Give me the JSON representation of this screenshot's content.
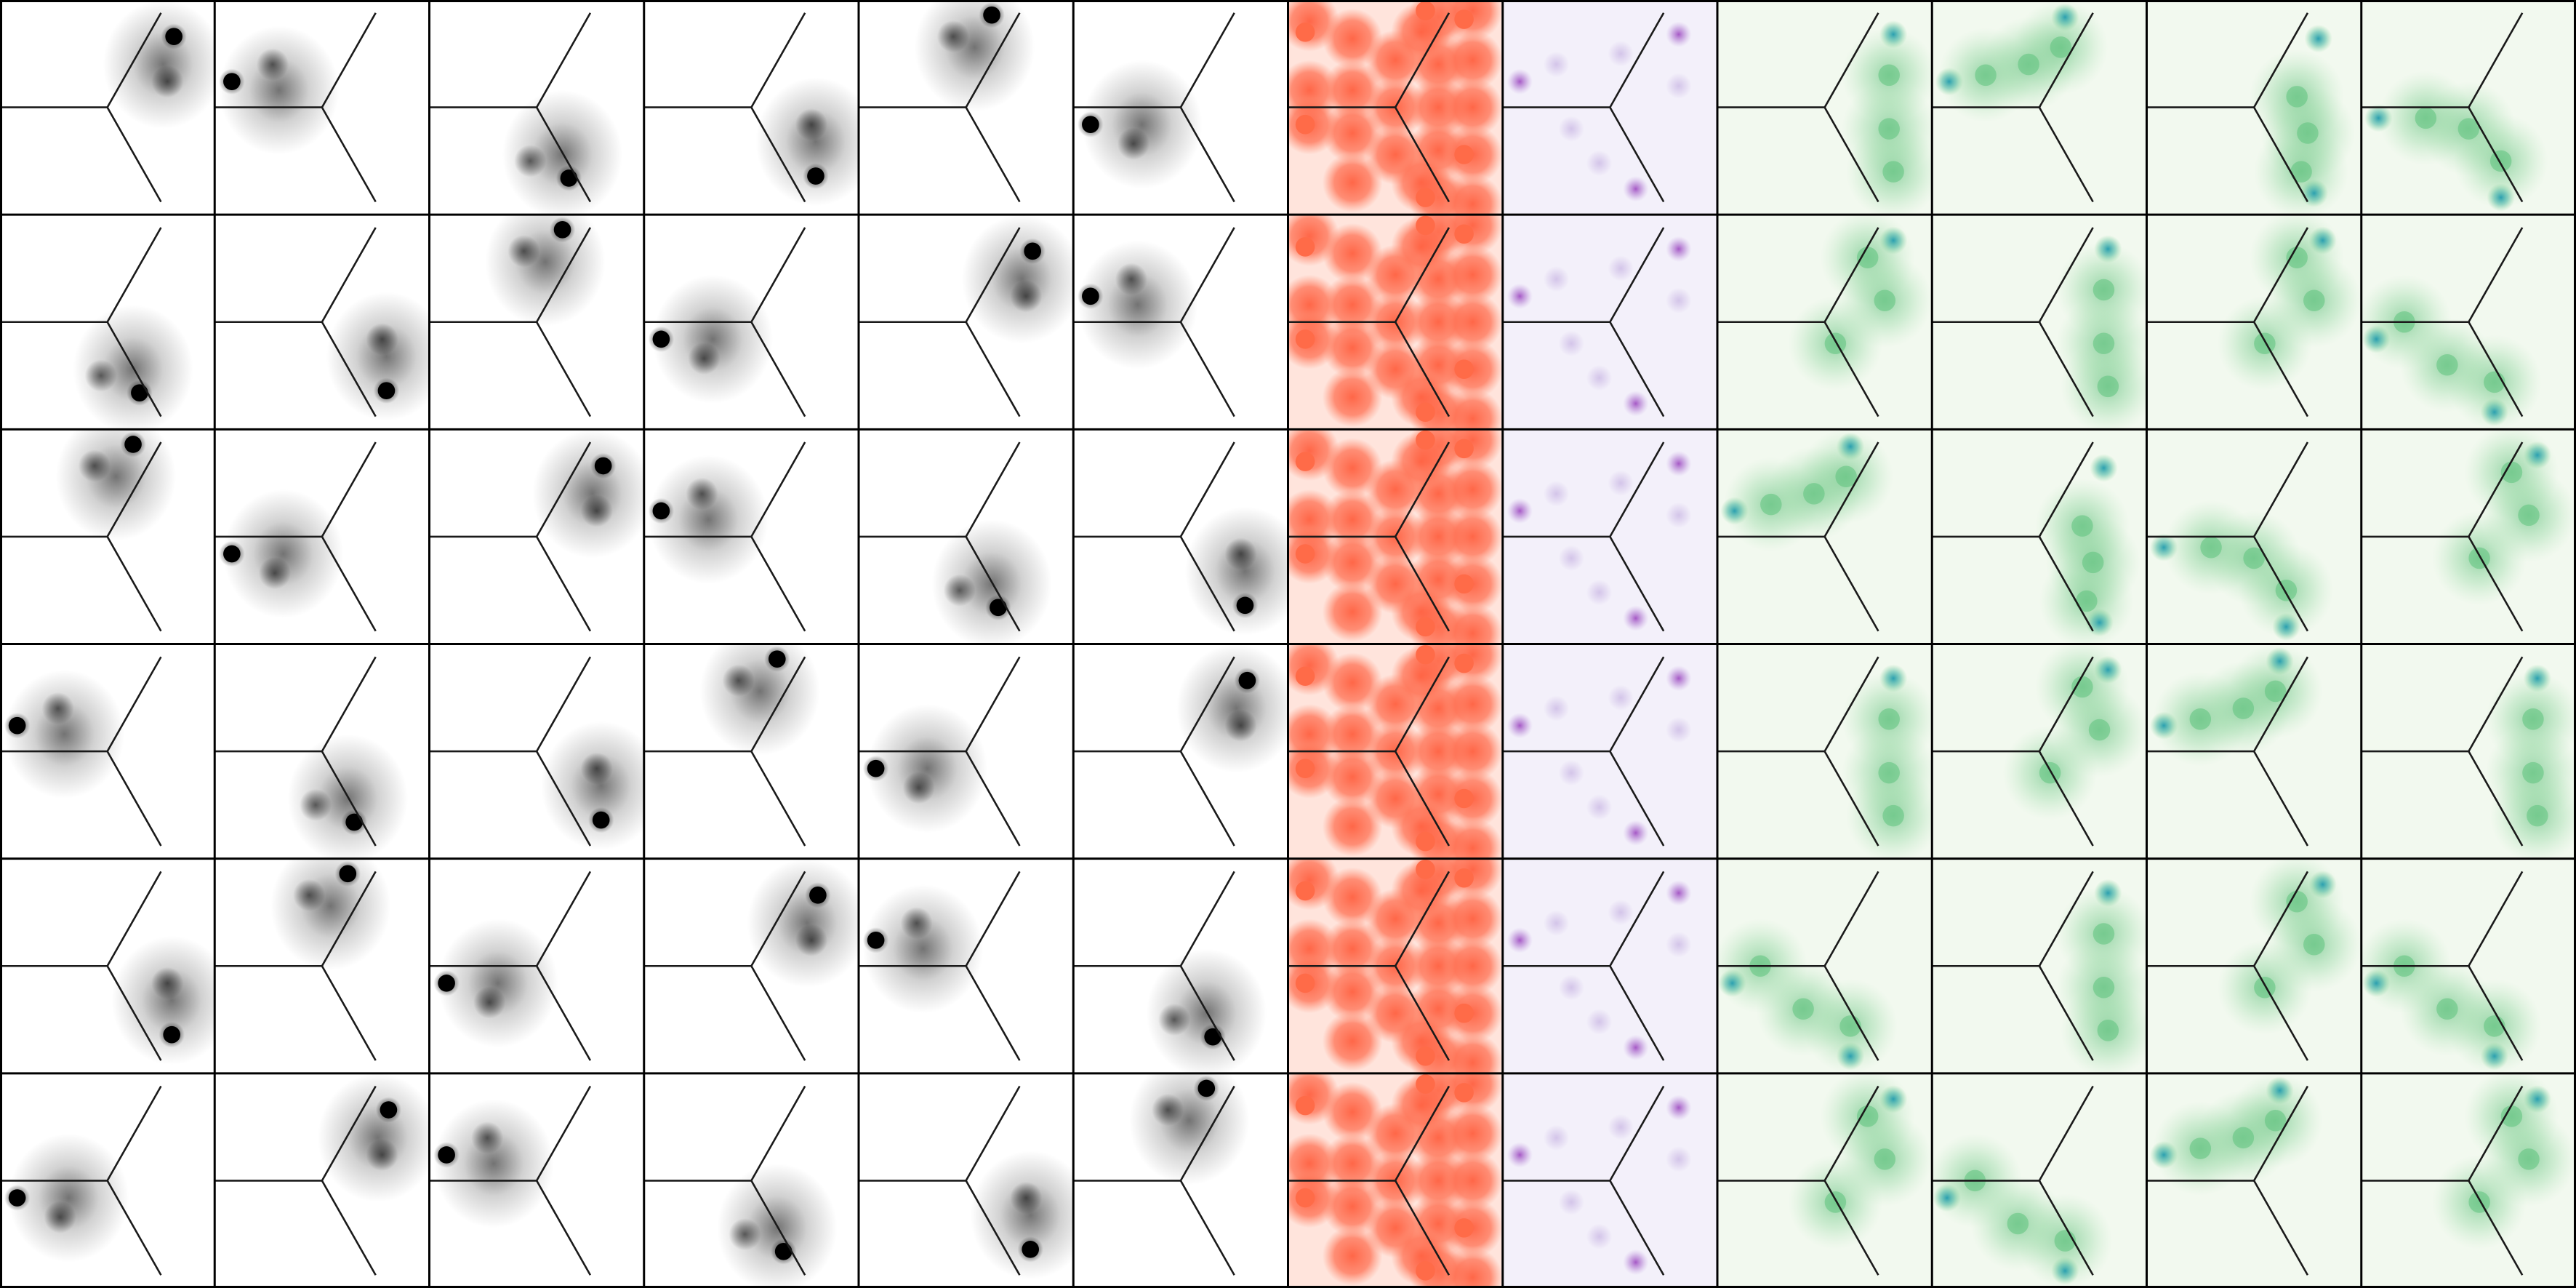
{
  "grid": {
    "rows": 6,
    "cols": 12
  },
  "colors": {
    "line": "#1a1a1a",
    "gray_blob": "#000000",
    "red_fill": "#ff6b48",
    "red_bg": "#ffe4dc",
    "purple_dot": "#a14fc4",
    "purple_bg": "#f3f0fa",
    "green_blob": "#5fc27e",
    "green_bg": "#f2f9ef",
    "teal_dot": "#2ba6a8",
    "blue_dot": "#2b8cc4"
  },
  "columns": [
    {
      "kind": "gray",
      "orient": [
        0,
        2,
        4,
        1,
        3,
        5
      ]
    },
    {
      "kind": "gray",
      "orient": [
        1,
        3,
        5,
        2,
        4,
        0
      ]
    },
    {
      "kind": "gray",
      "orient": [
        2,
        4,
        0,
        3,
        5,
        1
      ]
    },
    {
      "kind": "gray",
      "orient": [
        3,
        5,
        1,
        4,
        0,
        2
      ]
    },
    {
      "kind": "gray",
      "orient": [
        4,
        0,
        2,
        5,
        1,
        3
      ]
    },
    {
      "kind": "gray",
      "orient": [
        5,
        1,
        3,
        0,
        2,
        4
      ]
    },
    {
      "kind": "red"
    },
    {
      "kind": "purple"
    },
    {
      "kind": "green",
      "orient": [
        0,
        4,
        1,
        0,
        5,
        4
      ]
    },
    {
      "kind": "green",
      "orient": [
        1,
        0,
        2,
        4,
        0,
        5
      ]
    },
    {
      "kind": "green",
      "orient": [
        2,
        4,
        3,
        1,
        4,
        1
      ]
    },
    {
      "kind": "green",
      "orient": [
        3,
        5,
        4,
        0,
        5,
        4
      ]
    }
  ]
}
